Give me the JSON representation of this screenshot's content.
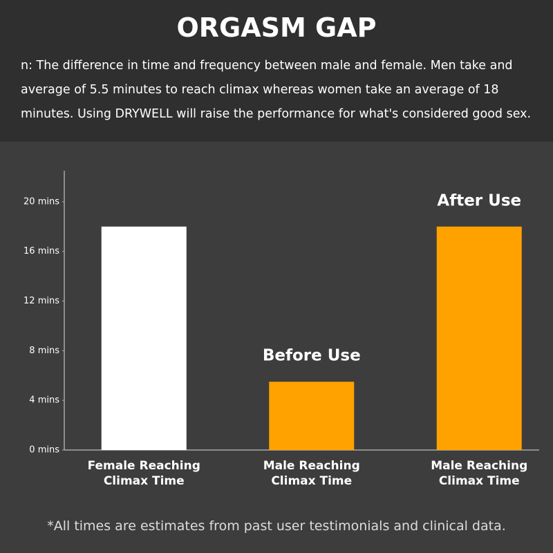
{
  "header": {
    "title": "ORGASM GAP",
    "subtitle": "n: The difference in time and frequency between male and female. Men take and average of 5.5 minutes to reach climax whereas women take an average of 18 minutes. Using DRYWELL will raise the performance for what's considered good sex."
  },
  "chart_data": {
    "type": "bar",
    "categories": [
      "Female Reaching Climax Time",
      "Male Reaching Climax Time",
      "Male Reaching Climax Time"
    ],
    "values": [
      18,
      5.5,
      18
    ],
    "colors": [
      "#ffffff",
      "#ffa200",
      "#ffa200"
    ],
    "bar_labels": [
      null,
      "Before Use",
      "After Use"
    ],
    "ylim": [
      0,
      22.5
    ],
    "yticks": [
      {
        "value": 0,
        "label": "0 mins"
      },
      {
        "value": 4,
        "label": "4 mins"
      },
      {
        "value": 8,
        "label": "8 mins"
      },
      {
        "value": 12,
        "label": "12 mins"
      },
      {
        "value": 16,
        "label": "16 mins"
      },
      {
        "value": 20,
        "label": "20 mins"
      }
    ],
    "grid": false
  },
  "footnote": "*All times are estimates from past user testimonials and clinical data."
}
